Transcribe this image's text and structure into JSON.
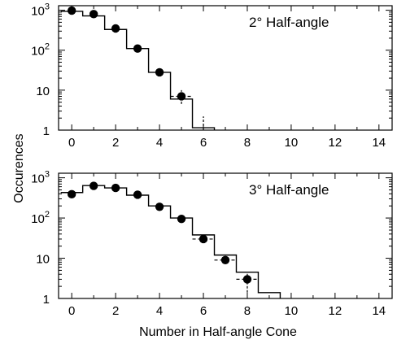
{
  "figure": {
    "ylabel": "Occurences",
    "xlabel": "Number in Half-angle Cone"
  },
  "chart_data": [
    {
      "type": "step",
      "annotation": "2° Half-angle",
      "xlim": [
        -0.6,
        14.6
      ],
      "ylim": [
        1,
        1300
      ],
      "yscale": "log",
      "xticks": [
        0,
        2,
        4,
        6,
        8,
        10,
        12,
        14
      ],
      "yticks": [
        {
          "value": 1,
          "base": "1",
          "exp": ""
        },
        {
          "value": 10,
          "base": "10",
          "exp": ""
        },
        {
          "value": 100,
          "base": "10",
          "exp": "2"
        },
        {
          "value": 1000,
          "base": "10",
          "exp": "3"
        }
      ],
      "histogram": {
        "name": "",
        "x": [
          0,
          1,
          2,
          3,
          4,
          5,
          6,
          7,
          8,
          9,
          10,
          11,
          12,
          13,
          14
        ],
        "values": [
          940,
          720,
          330,
          110,
          28,
          6,
          1.15,
          null,
          null,
          null,
          null,
          null,
          null,
          null,
          null
        ]
      },
      "points": {
        "name": "",
        "x": [
          0,
          1,
          2,
          3,
          4,
          5
        ],
        "y": [
          980,
          800,
          350,
          110,
          28,
          7
        ],
        "yerr_low": [
          0,
          0,
          0,
          0,
          0,
          2.5
        ],
        "yerr_high": [
          0,
          0,
          0,
          0,
          0,
          3
        ],
        "xerr": [
          0,
          0,
          0,
          0,
          0,
          0.5
        ]
      },
      "extra_errorbar": {
        "x": 6,
        "low": 1,
        "high": 2.2
      }
    },
    {
      "type": "step",
      "annotation": "3° Half-angle",
      "xlim": [
        -0.6,
        14.6
      ],
      "ylim": [
        1,
        1300
      ],
      "yscale": "log",
      "xticks": [
        0,
        2,
        4,
        6,
        8,
        10,
        12,
        14
      ],
      "yticks": [
        {
          "value": 1,
          "base": "1",
          "exp": ""
        },
        {
          "value": 10,
          "base": "10",
          "exp": ""
        },
        {
          "value": 100,
          "base": "10",
          "exp": "2"
        },
        {
          "value": 1000,
          "base": "10",
          "exp": "3"
        }
      ],
      "histogram": {
        "name": "",
        "x": [
          0,
          1,
          2,
          3,
          4,
          5,
          6,
          7,
          8,
          9,
          10,
          11,
          12,
          13,
          14
        ],
        "values": [
          430,
          640,
          560,
          370,
          200,
          100,
          38,
          12,
          4.5,
          1.4,
          null,
          null,
          null,
          null,
          null
        ]
      },
      "points": {
        "name": "",
        "x": [
          0,
          1,
          2,
          3,
          4,
          5,
          6,
          7,
          8
        ],
        "y": [
          390,
          630,
          560,
          380,
          190,
          95,
          30,
          9,
          3
        ],
        "yerr_low": [
          0,
          0,
          0,
          0,
          0,
          0,
          0,
          0,
          1.6
        ],
        "yerr_high": [
          0,
          0,
          0,
          0,
          0,
          0,
          0,
          0,
          1.5
        ],
        "xerr": [
          0,
          0,
          0,
          0,
          0,
          0,
          0.5,
          0.5,
          0.5
        ]
      }
    }
  ]
}
